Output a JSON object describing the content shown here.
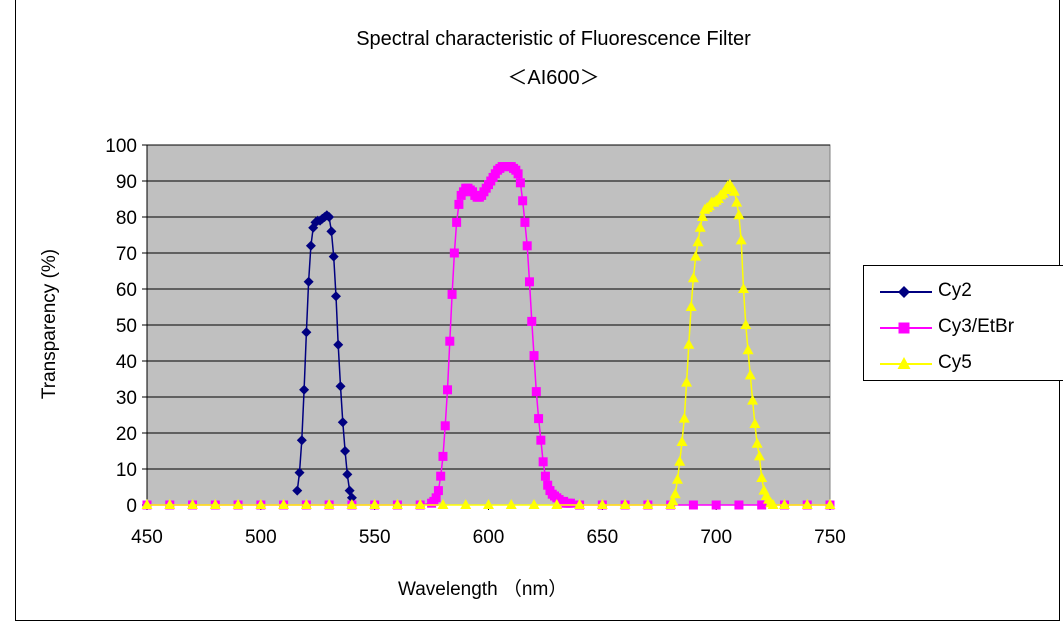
{
  "chart_data": {
    "type": "line",
    "title": "Spectral characteristic of Fluorescence Filter",
    "subtitle": "＜AI600＞",
    "xlabel": "Wavelength （nm）",
    "ylabel": "Transparency (%)",
    "xlim": [
      450,
      750
    ],
    "ylim": [
      0,
      100
    ],
    "xticks": [
      450,
      500,
      550,
      600,
      650,
      700,
      750
    ],
    "yticks": [
      0,
      10,
      20,
      30,
      40,
      50,
      60,
      70,
      80,
      90,
      100
    ],
    "grid": "horizontal",
    "plot_background": "#c0c0c0",
    "legend_position": "right",
    "series": [
      {
        "name": "Cy2",
        "color": "#000080",
        "marker": "diamond",
        "x": [
          516,
          517,
          518,
          519,
          520,
          521,
          522,
          523,
          524,
          525,
          526,
          527,
          528,
          529,
          530,
          531,
          532,
          533,
          534,
          535,
          536,
          537,
          538,
          539,
          540
        ],
        "y": [
          4,
          9,
          18,
          32,
          48,
          62,
          72,
          77,
          78.5,
          79,
          79,
          79.5,
          80,
          80.5,
          80,
          76,
          69,
          58,
          44.5,
          33,
          23,
          15,
          8.5,
          4,
          2
        ]
      },
      {
        "name": "Cy3/EtBr",
        "color": "#ff00ff",
        "marker": "square",
        "x": [
          450,
          460,
          470,
          480,
          490,
          500,
          510,
          520,
          530,
          540,
          550,
          560,
          570,
          575,
          576,
          577,
          578,
          579,
          580,
          581,
          582,
          583,
          584,
          585,
          586,
          587,
          588,
          589,
          590,
          591,
          592,
          593,
          594,
          595,
          596,
          597,
          598,
          599,
          600,
          601,
          602,
          603,
          604,
          605,
          606,
          607,
          608,
          609,
          610,
          611,
          612,
          613,
          614,
          615,
          616,
          617,
          618,
          619,
          620,
          621,
          622,
          623,
          624,
          625,
          626,
          627,
          628,
          629,
          630,
          631,
          632,
          633,
          634,
          635,
          636,
          640,
          650,
          660,
          670,
          680,
          690,
          700,
          710,
          720,
          730,
          740,
          750
        ],
        "y": [
          0,
          0,
          0,
          0,
          0,
          0,
          0,
          0,
          0,
          0,
          0,
          0,
          0,
          0.5,
          1,
          2,
          4,
          8,
          13.5,
          22,
          32,
          45.5,
          58.5,
          70,
          78.5,
          83.5,
          86,
          87,
          88,
          88,
          87.5,
          87,
          86,
          85.5,
          85.5,
          86,
          87,
          88,
          89,
          90,
          91,
          92,
          93,
          93.5,
          94,
          94,
          94,
          94,
          94,
          93.5,
          93,
          92,
          89.5,
          84.5,
          78.5,
          72,
          62,
          51,
          41.5,
          31.5,
          24,
          18,
          12,
          8,
          5.5,
          4,
          3,
          2.5,
          2,
          1.5,
          1,
          1,
          0.5,
          0.5,
          0.5,
          0,
          0,
          0,
          0,
          0,
          0,
          0,
          0,
          0,
          0,
          0,
          0
        ]
      },
      {
        "name": "Cy5",
        "color": "#ffff00",
        "marker": "triangle",
        "x": [
          450,
          460,
          470,
          480,
          490,
          500,
          510,
          520,
          530,
          540,
          550,
          560,
          570,
          580,
          590,
          600,
          610,
          620,
          630,
          640,
          650,
          660,
          670,
          680,
          681,
          682,
          683,
          684,
          685,
          686,
          687,
          688,
          689,
          690,
          691,
          692,
          693,
          694,
          695,
          696,
          697,
          698,
          699,
          700,
          701,
          702,
          703,
          704,
          705,
          706,
          707,
          708,
          709,
          710,
          711,
          712,
          713,
          714,
          715,
          716,
          717,
          718,
          719,
          720,
          721,
          722,
          723,
          724,
          725,
          730,
          740,
          750
        ],
        "y": [
          0,
          0,
          0,
          0,
          0,
          0,
          0,
          0,
          0,
          0,
          0,
          0,
          0,
          0,
          0,
          0,
          0,
          0,
          0,
          0,
          0,
          0,
          0,
          0,
          1,
          3,
          7,
          12,
          17.5,
          24,
          34,
          44.5,
          55,
          63,
          69,
          73,
          77,
          80,
          82,
          82.5,
          83,
          84,
          84,
          84.5,
          85,
          86,
          86.5,
          87.5,
          88.5,
          89,
          88,
          87,
          84,
          80.5,
          73.5,
          60,
          50,
          43,
          36,
          29,
          22.5,
          17,
          13.5,
          7.5,
          4,
          2.5,
          1.5,
          0.5,
          0,
          0,
          0,
          0
        ]
      }
    ]
  }
}
